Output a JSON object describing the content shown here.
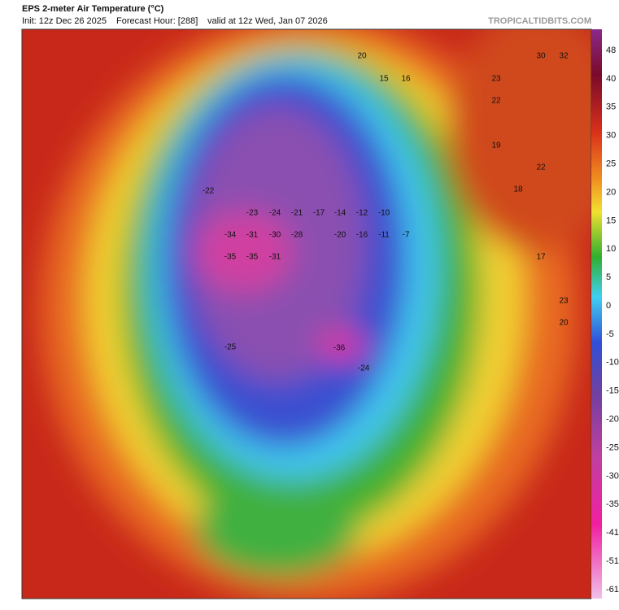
{
  "header": {
    "title": "EPS 2-meter Air Temperature (°C)",
    "init": "Init: 12z Dec 26 2025",
    "forecast_hour": "Forecast Hour: [288]",
    "valid": "valid at 12z Wed, Jan 07 2026",
    "source": "TROPICALTIDBITS.COM"
  },
  "colorbar": {
    "ticks": [
      48,
      40,
      35,
      30,
      25,
      20,
      15,
      10,
      5,
      0,
      -5,
      -10,
      -15,
      -20,
      -25,
      -30,
      -35,
      -41,
      -51,
      -61
    ]
  },
  "map_labels": [
    -34,
    -31,
    -30,
    -28,
    -35,
    -35,
    -31,
    -25,
    -36,
    -24,
    -22,
    -23,
    -24,
    -21,
    -17,
    -14,
    -12,
    -10,
    -20,
    -16,
    -11,
    -7,
    32,
    30,
    23,
    22,
    19,
    22,
    18,
    17,
    23,
    20,
    15,
    20,
    16
  ]
}
